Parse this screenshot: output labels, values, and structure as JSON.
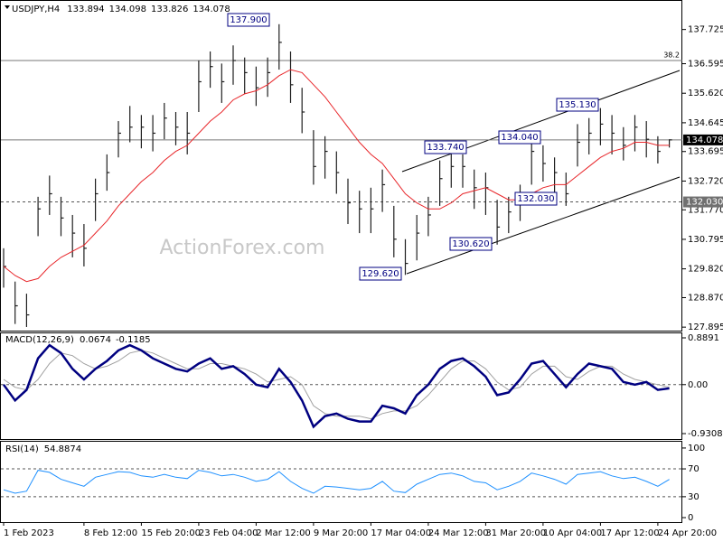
{
  "chart_data": [
    {
      "type": "ohlc",
      "symbol": "USDJPY,H4",
      "header_values": [
        133.894,
        134.098,
        133.826,
        134.078
      ],
      "watermark": "ActionForex.com",
      "color": "#1f1f1f",
      "high": [
        130.5,
        129.4,
        129.0,
        132.2,
        132.9,
        132.2,
        131.6,
        131.3,
        132.8,
        133.6,
        134.7,
        135.2,
        134.9,
        134.9,
        135.3,
        135.0,
        135.0,
        136.7,
        137.0,
        136.6,
        137.2,
        136.8,
        136.5,
        136.8,
        137.9,
        137.0,
        135.8,
        134.4,
        134.2,
        133.7,
        132.8,
        132.4,
        132.5,
        133.1,
        131.9,
        130.8,
        131.6,
        132.2,
        133.4,
        133.74,
        133.6,
        133.1,
        133.0,
        132.1,
        132.2,
        132.6,
        134.04,
        133.9,
        133.5,
        133.0,
        134.6,
        134.8,
        135.13,
        134.9,
        134.5,
        134.9,
        134.7,
        134.2,
        134.098
      ],
      "low": [
        129.2,
        128.0,
        127.9,
        130.9,
        131.6,
        130.9,
        130.2,
        129.9,
        131.4,
        132.4,
        133.5,
        134.0,
        133.8,
        133.7,
        134.1,
        133.9,
        133.6,
        135.0,
        135.8,
        135.3,
        135.9,
        135.6,
        135.2,
        135.5,
        136.4,
        135.3,
        134.3,
        132.6,
        132.8,
        132.3,
        131.3,
        131.0,
        131.0,
        131.7,
        130.2,
        129.62,
        130.1,
        130.9,
        131.9,
        132.5,
        132.5,
        131.8,
        131.6,
        130.62,
        131.0,
        131.4,
        132.6,
        132.7,
        132.03,
        131.9,
        133.2,
        133.6,
        133.9,
        133.6,
        133.4,
        133.7,
        133.5,
        133.3,
        133.826
      ],
      "close": [
        129.9,
        128.6,
        128.3,
        131.8,
        132.3,
        131.5,
        131.0,
        130.5,
        132.3,
        133.0,
        134.3,
        134.5,
        134.5,
        134.3,
        134.8,
        134.5,
        134.3,
        136.0,
        136.5,
        136.0,
        136.7,
        136.3,
        135.8,
        136.3,
        137.3,
        135.9,
        135.0,
        133.2,
        133.7,
        133.0,
        132.0,
        131.8,
        131.8,
        132.6,
        130.8,
        130.0,
        131.0,
        131.6,
        132.8,
        133.2,
        133.2,
        132.5,
        132.5,
        131.2,
        131.7,
        132.1,
        133.7,
        133.3,
        133.0,
        132.3,
        134.0,
        134.3,
        134.6,
        134.3,
        133.9,
        134.5,
        134.1,
        133.7,
        134.08
      ],
      "overlay": {
        "color": "#e8262a",
        "values": [
          129.9,
          129.6,
          129.4,
          129.5,
          129.9,
          130.2,
          130.4,
          130.6,
          131.0,
          131.4,
          131.9,
          132.3,
          132.7,
          133.0,
          133.4,
          133.7,
          133.9,
          134.3,
          134.7,
          135.0,
          135.4,
          135.6,
          135.7,
          135.9,
          136.2,
          136.4,
          136.3,
          135.9,
          135.5,
          135.0,
          134.5,
          134.0,
          133.6,
          133.3,
          132.8,
          132.3,
          132.0,
          131.8,
          131.8,
          132.0,
          132.3,
          132.4,
          132.5,
          132.3,
          132.1,
          132.1,
          132.3,
          132.5,
          132.6,
          132.6,
          132.9,
          133.2,
          133.5,
          133.7,
          133.8,
          134.0,
          134.0,
          133.9,
          133.9
        ]
      },
      "ylim": [
        127.81,
        138.55
      ],
      "yticks": [
        137.725,
        136.595,
        {
          "value": 135.62,
          "label": "135.620"
        },
        134.645,
        133.695,
        {
          "value": 132.72,
          "label": "132.720"
        },
        {
          "value": 131.77,
          "label": "131.770"
        },
        130.795,
        {
          "value": 129.82,
          "label": "129.820"
        },
        {
          "value": 128.87,
          "label": "128.870"
        },
        127.895
      ],
      "levels": [
        {
          "value": 136.7,
          "label": "38.2"
        },
        134.078,
        {
          "value": 132.03,
          "label": "132.030"
        }
      ],
      "level_styles": [
        "solid",
        "solid",
        "dash"
      ],
      "annotations": [
        "137.900",
        "133.740",
        "134.040",
        "135.130",
        "132.030",
        "130.620",
        "129.620"
      ]
    },
    {
      "type": "macd",
      "title": "MACD(12,26,9)",
      "header_values": [
        0.0674,
        -0.1185
      ],
      "macd": {
        "color": "#000080",
        "values": [
          0.0,
          -0.3,
          -0.1,
          0.5,
          0.75,
          0.6,
          0.3,
          0.1,
          0.3,
          0.45,
          0.65,
          0.75,
          0.65,
          0.5,
          0.4,
          0.3,
          0.25,
          0.4,
          0.5,
          0.3,
          0.35,
          0.2,
          0.0,
          -0.05,
          0.3,
          0.05,
          -0.3,
          -0.8,
          -0.6,
          -0.55,
          -0.65,
          -0.7,
          -0.7,
          -0.4,
          -0.45,
          -0.55,
          -0.2,
          0.0,
          0.3,
          0.45,
          0.5,
          0.35,
          0.15,
          -0.2,
          -0.15,
          0.1,
          0.4,
          0.45,
          0.2,
          -0.05,
          0.2,
          0.4,
          0.35,
          0.3,
          0.05,
          0.0,
          0.05,
          -0.1,
          -0.07
        ]
      },
      "signal": {
        "color": "#a0a0a0",
        "values": [
          0.1,
          -0.05,
          -0.1,
          0.1,
          0.4,
          0.6,
          0.55,
          0.4,
          0.3,
          0.35,
          0.45,
          0.6,
          0.65,
          0.6,
          0.5,
          0.4,
          0.3,
          0.3,
          0.4,
          0.4,
          0.35,
          0.3,
          0.2,
          0.05,
          0.1,
          0.15,
          0.0,
          -0.4,
          -0.55,
          -0.6,
          -0.6,
          -0.6,
          -0.65,
          -0.55,
          -0.5,
          -0.5,
          -0.4,
          -0.2,
          0.05,
          0.3,
          0.45,
          0.45,
          0.3,
          0.05,
          -0.1,
          -0.05,
          0.2,
          0.35,
          0.35,
          0.15,
          0.1,
          0.25,
          0.35,
          0.35,
          0.2,
          0.1,
          0.05,
          0.0,
          -0.05
        ]
      },
      "ylim": [
        -1.051,
        0.992
      ],
      "yticks": [
        0.8891,
        {
          "value": 0,
          "label": "0.00"
        },
        -0.9308
      ],
      "levels": [
        0
      ]
    },
    {
      "type": "line",
      "title": "RSI(14)",
      "header_values": [
        54.8874
      ],
      "color": "#1e90ff",
      "values": [
        40,
        35,
        38,
        68,
        65,
        55,
        50,
        45,
        58,
        62,
        66,
        65,
        60,
        58,
        62,
        58,
        56,
        68,
        65,
        60,
        62,
        58,
        52,
        55,
        66,
        52,
        42,
        35,
        45,
        44,
        42,
        40,
        42,
        52,
        38,
        36,
        48,
        55,
        62,
        64,
        60,
        52,
        50,
        40,
        45,
        52,
        64,
        60,
        55,
        48,
        62,
        64,
        66,
        60,
        56,
        58,
        52,
        45,
        54.8874
      ],
      "ylim": [
        -6.5,
        109
      ],
      "yticks": [
        100,
        70,
        30,
        0
      ],
      "levels": [
        70,
        30
      ],
      "categories": [
        "1 Feb 2023",
        null,
        null,
        null,
        null,
        null,
        null,
        "8 Feb 12:00",
        null,
        null,
        null,
        null,
        "15 Feb 20:00",
        null,
        null,
        null,
        null,
        "23 Feb 04:00",
        null,
        null,
        null,
        null,
        "2 Mar 12:00",
        null,
        null,
        null,
        null,
        "9 Mar 20:00",
        null,
        null,
        null,
        null,
        "17 Mar 04:00",
        null,
        null,
        null,
        null,
        "24 Mar 12:00",
        null,
        null,
        null,
        null,
        "31 Mar 20:00",
        null,
        null,
        null,
        null,
        "10 Apr 04:00",
        null,
        null,
        null,
        null,
        "17 Apr 12:00",
        null,
        null,
        null,
        null,
        "24 Apr 20:00",
        null
      ]
    }
  ]
}
